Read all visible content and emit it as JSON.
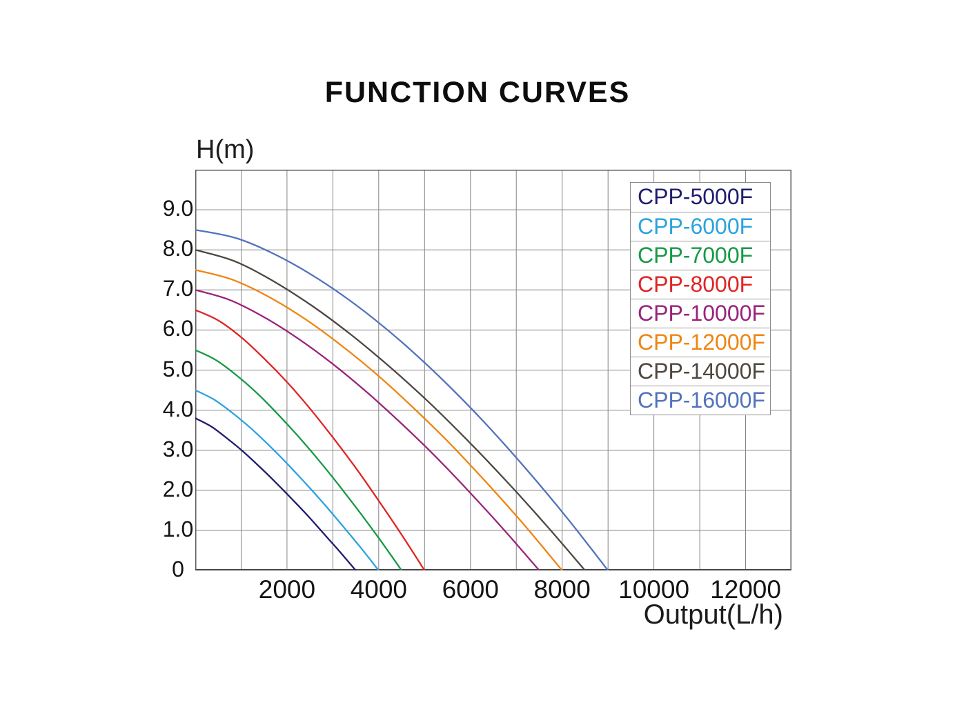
{
  "chart_data": {
    "type": "line",
    "title": "FUNCTION CURVES",
    "xlabel": "Output(L/h)",
    "ylabel": "H(m)",
    "xlim": [
      0,
      13000
    ],
    "ylim": [
      0,
      10
    ],
    "grid": {
      "x_step": 1000,
      "y_step": 1,
      "on": true
    },
    "legend_position": "top-right",
    "x_ticks": [
      {
        "v": 2000,
        "label": "2000"
      },
      {
        "v": 4000,
        "label": "4000"
      },
      {
        "v": 6000,
        "label": "6000"
      },
      {
        "v": 8000,
        "label": "8000"
      },
      {
        "v": 10000,
        "label": "10000"
      },
      {
        "v": 12000,
        "label": "12000"
      }
    ],
    "y_ticks": [
      {
        "v": 9,
        "label": "9.0"
      },
      {
        "v": 8,
        "label": "8.0"
      },
      {
        "v": 7,
        "label": "7.0"
      },
      {
        "v": 6,
        "label": "6.0"
      },
      {
        "v": 5,
        "label": "5.0"
      },
      {
        "v": 4,
        "label": "4.0"
      },
      {
        "v": 3,
        "label": "3.0"
      },
      {
        "v": 2,
        "label": "2.0"
      },
      {
        "v": 1,
        "label": "1.0"
      },
      {
        "v": 0,
        "label": "0"
      }
    ],
    "style": {
      "grid_color": "#848484",
      "border_color": "#5a5a5a",
      "axis_color": "#454545",
      "text_color": "#141414",
      "legend_border": "#8c8c8c"
    },
    "series": [
      {
        "name": "CPP-5000F",
        "color": "#201c6e",
        "max_head_m": 3.8,
        "max_flow_lh": 3500,
        "points": [
          [
            0,
            3.8
          ],
          [
            350,
            3.59
          ],
          [
            700,
            3.29
          ],
          [
            1050,
            2.96
          ],
          [
            1400,
            2.59
          ],
          [
            1750,
            2.2
          ],
          [
            2100,
            1.79
          ],
          [
            2450,
            1.37
          ],
          [
            2800,
            0.92
          ],
          [
            3150,
            0.47
          ],
          [
            3500,
            0
          ]
        ]
      },
      {
        "name": "CPP-6000F",
        "color": "#2aa3df",
        "max_head_m": 4.5,
        "max_flow_lh": 4000,
        "points": [
          [
            0,
            4.5
          ],
          [
            400,
            4.27
          ],
          [
            800,
            3.94
          ],
          [
            1200,
            3.56
          ],
          [
            1600,
            3.13
          ],
          [
            2000,
            2.67
          ],
          [
            2400,
            2.18
          ],
          [
            2800,
            1.67
          ],
          [
            3200,
            1.13
          ],
          [
            3600,
            0.58
          ],
          [
            4000,
            0
          ]
        ]
      },
      {
        "name": "CPP-7000F",
        "color": "#179a45",
        "max_head_m": 5.5,
        "max_flow_lh": 4500,
        "points": [
          [
            0,
            5.5
          ],
          [
            450,
            5.25
          ],
          [
            900,
            4.87
          ],
          [
            1350,
            4.42
          ],
          [
            1800,
            3.9
          ],
          [
            2250,
            3.34
          ],
          [
            2700,
            2.74
          ],
          [
            3150,
            2.1
          ],
          [
            3600,
            1.43
          ],
          [
            4050,
            0.73
          ],
          [
            4500,
            0
          ]
        ]
      },
      {
        "name": "CPP-8000F",
        "color": "#e02424",
        "max_head_m": 6.5,
        "max_flow_lh": 5000,
        "points": [
          [
            0,
            6.5
          ],
          [
            500,
            6.24
          ],
          [
            1000,
            5.82
          ],
          [
            1500,
            5.29
          ],
          [
            2000,
            4.7
          ],
          [
            2500,
            4.04
          ],
          [
            3000,
            3.32
          ],
          [
            3500,
            2.56
          ],
          [
            4000,
            1.74
          ],
          [
            4500,
            0.89
          ],
          [
            5000,
            0
          ]
        ]
      },
      {
        "name": "CPP-10000F",
        "color": "#99247a",
        "max_head_m": 7.0,
        "max_flow_lh": 7500,
        "points": [
          [
            0,
            7
          ],
          [
            750,
            6.75
          ],
          [
            1500,
            6.32
          ],
          [
            2250,
            5.78
          ],
          [
            3000,
            5.15
          ],
          [
            3750,
            4.44
          ],
          [
            4500,
            3.66
          ],
          [
            5250,
            2.83
          ],
          [
            6000,
            1.93
          ],
          [
            6750,
            0.99
          ],
          [
            7500,
            0
          ]
        ]
      },
      {
        "name": "CPP-12000F",
        "color": "#ef8512",
        "max_head_m": 7.5,
        "max_flow_lh": 8000,
        "points": [
          [
            0,
            7.5
          ],
          [
            800,
            7.26
          ],
          [
            1600,
            6.83
          ],
          [
            2400,
            6.27
          ],
          [
            3200,
            5.6
          ],
          [
            4000,
            4.85
          ],
          [
            4800,
            4.01
          ],
          [
            5600,
            3.11
          ],
          [
            6400,
            2.13
          ],
          [
            7200,
            1.1
          ],
          [
            8000,
            0
          ]
        ]
      },
      {
        "name": "CPP-14000F",
        "color": "#4e473f",
        "max_head_m": 8.0,
        "max_flow_lh": 8500,
        "points": [
          [
            0,
            8
          ],
          [
            850,
            7.72
          ],
          [
            1700,
            7.22
          ],
          [
            2550,
            6.6
          ],
          [
            3400,
            5.88
          ],
          [
            4250,
            5.07
          ],
          [
            5100,
            4.19
          ],
          [
            5950,
            3.23
          ],
          [
            6800,
            2.21
          ],
          [
            7650,
            1.13
          ],
          [
            8500,
            0
          ]
        ]
      },
      {
        "name": "CPP-16000F",
        "color": "#5272bd",
        "max_head_m": 8.5,
        "max_flow_lh": 9000,
        "points": [
          [
            0,
            8.5
          ],
          [
            900,
            8.29
          ],
          [
            1800,
            7.85
          ],
          [
            2700,
            7.26
          ],
          [
            3600,
            6.54
          ],
          [
            4500,
            5.7
          ],
          [
            5400,
            4.75
          ],
          [
            6300,
            3.7
          ],
          [
            7200,
            2.55
          ],
          [
            8100,
            1.32
          ],
          [
            9000,
            0
          ]
        ]
      }
    ]
  }
}
